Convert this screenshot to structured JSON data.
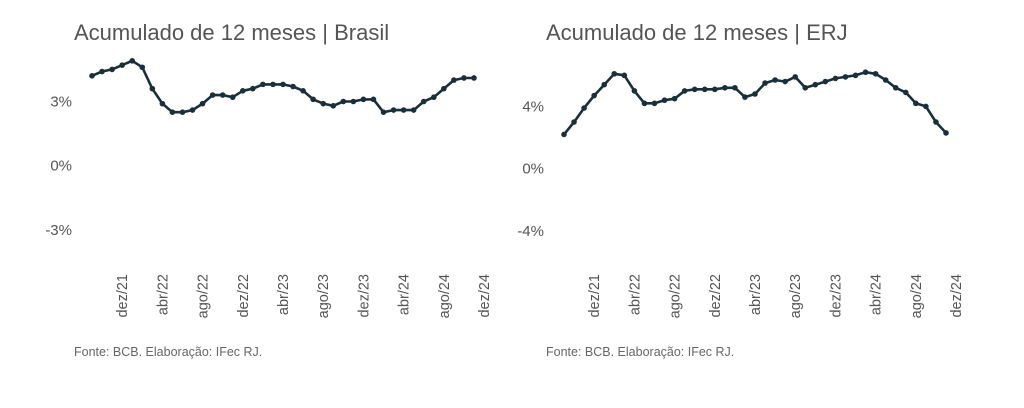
{
  "chart_data": [
    {
      "type": "line",
      "title": "Acumulado de 12 meses | Brasil",
      "source": "Fonte: BCB. Elaboração: IFec RJ.",
      "ylim": [
        -4.5,
        5.5
      ],
      "yticks": [
        {
          "value": 3,
          "label": "3%"
        },
        {
          "value": 0,
          "label": "0%"
        },
        {
          "value": -3,
          "label": "-3%"
        }
      ],
      "xticks": [
        {
          "index": 3,
          "label": "dez/21"
        },
        {
          "index": 7,
          "label": "abr/22"
        },
        {
          "index": 11,
          "label": "ago/22"
        },
        {
          "index": 15,
          "label": "dez/22"
        },
        {
          "index": 19,
          "label": "abr/23"
        },
        {
          "index": 23,
          "label": "ago/23"
        },
        {
          "index": 27,
          "label": "dez/23"
        },
        {
          "index": 31,
          "label": "abr/24"
        },
        {
          "index": 35,
          "label": "ago/24"
        },
        {
          "index": 39,
          "label": "dez/24"
        }
      ],
      "grid": false,
      "line_color": "#1b2f3a",
      "values": [
        4.2,
        4.4,
        4.5,
        4.7,
        4.9,
        4.6,
        3.6,
        2.9,
        2.5,
        2.5,
        2.6,
        2.9,
        3.3,
        3.3,
        3.2,
        3.5,
        3.6,
        3.8,
        3.8,
        3.8,
        3.7,
        3.5,
        3.1,
        2.9,
        2.8,
        3.0,
        3.0,
        3.1,
        3.1,
        2.5,
        2.6,
        2.6,
        2.6,
        3.0,
        3.2,
        3.6,
        4.0,
        4.1,
        4.1
      ]
    },
    {
      "type": "line",
      "title": "Acumulado de 12 meses | ERJ",
      "source": "Fonte: BCB. Elaboração: IFec RJ.",
      "ylim": [
        -6,
        7.5
      ],
      "yticks": [
        {
          "value": 4,
          "label": "4%"
        },
        {
          "value": 0,
          "label": "0%"
        },
        {
          "value": -4,
          "label": "-4%"
        }
      ],
      "xticks": [
        {
          "index": 3,
          "label": "dez/21"
        },
        {
          "index": 7,
          "label": "abr/22"
        },
        {
          "index": 11,
          "label": "ago/22"
        },
        {
          "index": 15,
          "label": "dez/22"
        },
        {
          "index": 19,
          "label": "abr/23"
        },
        {
          "index": 23,
          "label": "ago/23"
        },
        {
          "index": 27,
          "label": "dez/23"
        },
        {
          "index": 31,
          "label": "abr/24"
        },
        {
          "index": 35,
          "label": "ago/24"
        },
        {
          "index": 39,
          "label": "dez/24"
        }
      ],
      "grid": false,
      "line_color": "#1b2f3a",
      "values": [
        2.2,
        3.0,
        3.9,
        4.7,
        5.4,
        6.1,
        6.0,
        5.0,
        4.2,
        4.2,
        4.4,
        4.5,
        5.0,
        5.1,
        5.1,
        5.1,
        5.2,
        5.2,
        4.6,
        4.8,
        5.5,
        5.7,
        5.6,
        5.9,
        5.2,
        5.4,
        5.6,
        5.8,
        5.9,
        6.0,
        6.2,
        6.1,
        5.7,
        5.2,
        4.9,
        4.2,
        4.0,
        3.0,
        2.3
      ]
    }
  ]
}
